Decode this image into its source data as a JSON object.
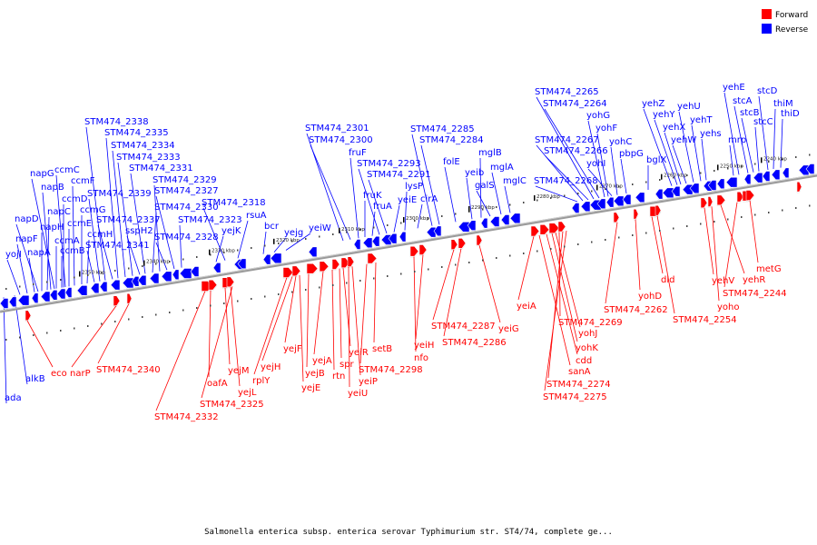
{
  "caption": "Salmonella enterica subsp. enterica serovar Typhimurium str. ST4/74, complete ge...",
  "legend": [
    {
      "label": "Forward",
      "color": "#ff0000"
    },
    {
      "label": "Reverse",
      "color": "#0000ff"
    }
  ],
  "colors": {
    "forward": "#ff0000",
    "reverse": "#0000ff",
    "backbone": "#808080"
  },
  "ticks": [
    "2240 kbp",
    "2250 kbp",
    "2260 kbp",
    "2270 kbp",
    "2280 kbp",
    "2290 kbp",
    "2300 kbp",
    "2310 kbp",
    "2320 kbp",
    "2330 kbp",
    "2340 kbp",
    "2350 kbp"
  ],
  "reverse_labels": [
    "ada",
    "alkB",
    "yojI",
    "napF",
    "napA",
    "napD",
    "napH",
    "napC",
    "napB",
    "napG",
    "ccmA",
    "ccmB",
    "ccmD",
    "ccmC",
    "ccmE",
    "ccmF",
    "ccmG",
    "ccmH",
    "STM474_2341",
    "STM474_2339",
    "STM474_2338",
    "STM474_2337",
    "STM474_2335",
    "STM474_2334",
    "STM474_2333",
    "sspH2",
    "STM474_2331",
    "STM474_2330",
    "STM474_2329",
    "STM474_2328",
    "STM474_2327",
    "STM474_2323",
    "yejK",
    "STM474_2318",
    "rsuA",
    "bcr",
    "yejg",
    "yeiW",
    "STM474_2301",
    "STM474_2300",
    "fruF",
    "fruK",
    "fruA",
    "STM474_2293",
    "STM474_2291",
    "yeiE",
    "lysP",
    "cirA",
    "STM474_2285",
    "STM474_2284",
    "folE",
    "yeib",
    "mglB",
    "galS",
    "mglA",
    "mglC",
    "STM474_2268",
    "STM474_2267",
    "STM474_2266",
    "STM474_2265",
    "STM474_2264",
    "yohG",
    "yohF",
    "yohI",
    "yohC",
    "pbpG",
    "bglX",
    "yehZ",
    "yehY",
    "yehX",
    "yehW",
    "yehU",
    "yehT",
    "yehs",
    "mrp",
    "yehE",
    "stcA",
    "stcB",
    "stcC",
    "stcD",
    "thiM",
    "thiD"
  ],
  "forward_labels": [
    "eco",
    "narP",
    "STM474_2340",
    "STM474_2332",
    "oafA",
    "yejM",
    "yejL",
    "STM474_2325",
    "rplY",
    "yejH",
    "yejF",
    "yejE",
    "yejB",
    "yejA",
    "rtn",
    "spr",
    "yeiR",
    "yeiU",
    "yeiP",
    "STM474_2298",
    "setB",
    "nfo",
    "yeiH",
    "STM474_2287",
    "STM474_2286",
    "yeiG",
    "yeiA",
    "sanA",
    "cdd",
    "yohK",
    "yohJ",
    "STM474_2269",
    "STM474_2274",
    "STM474_2275",
    "STM474_2262",
    "yohD",
    "dld",
    "STM474_2254",
    "yehV",
    "yoho",
    "yehR",
    "STM474_2244",
    "metG"
  ]
}
